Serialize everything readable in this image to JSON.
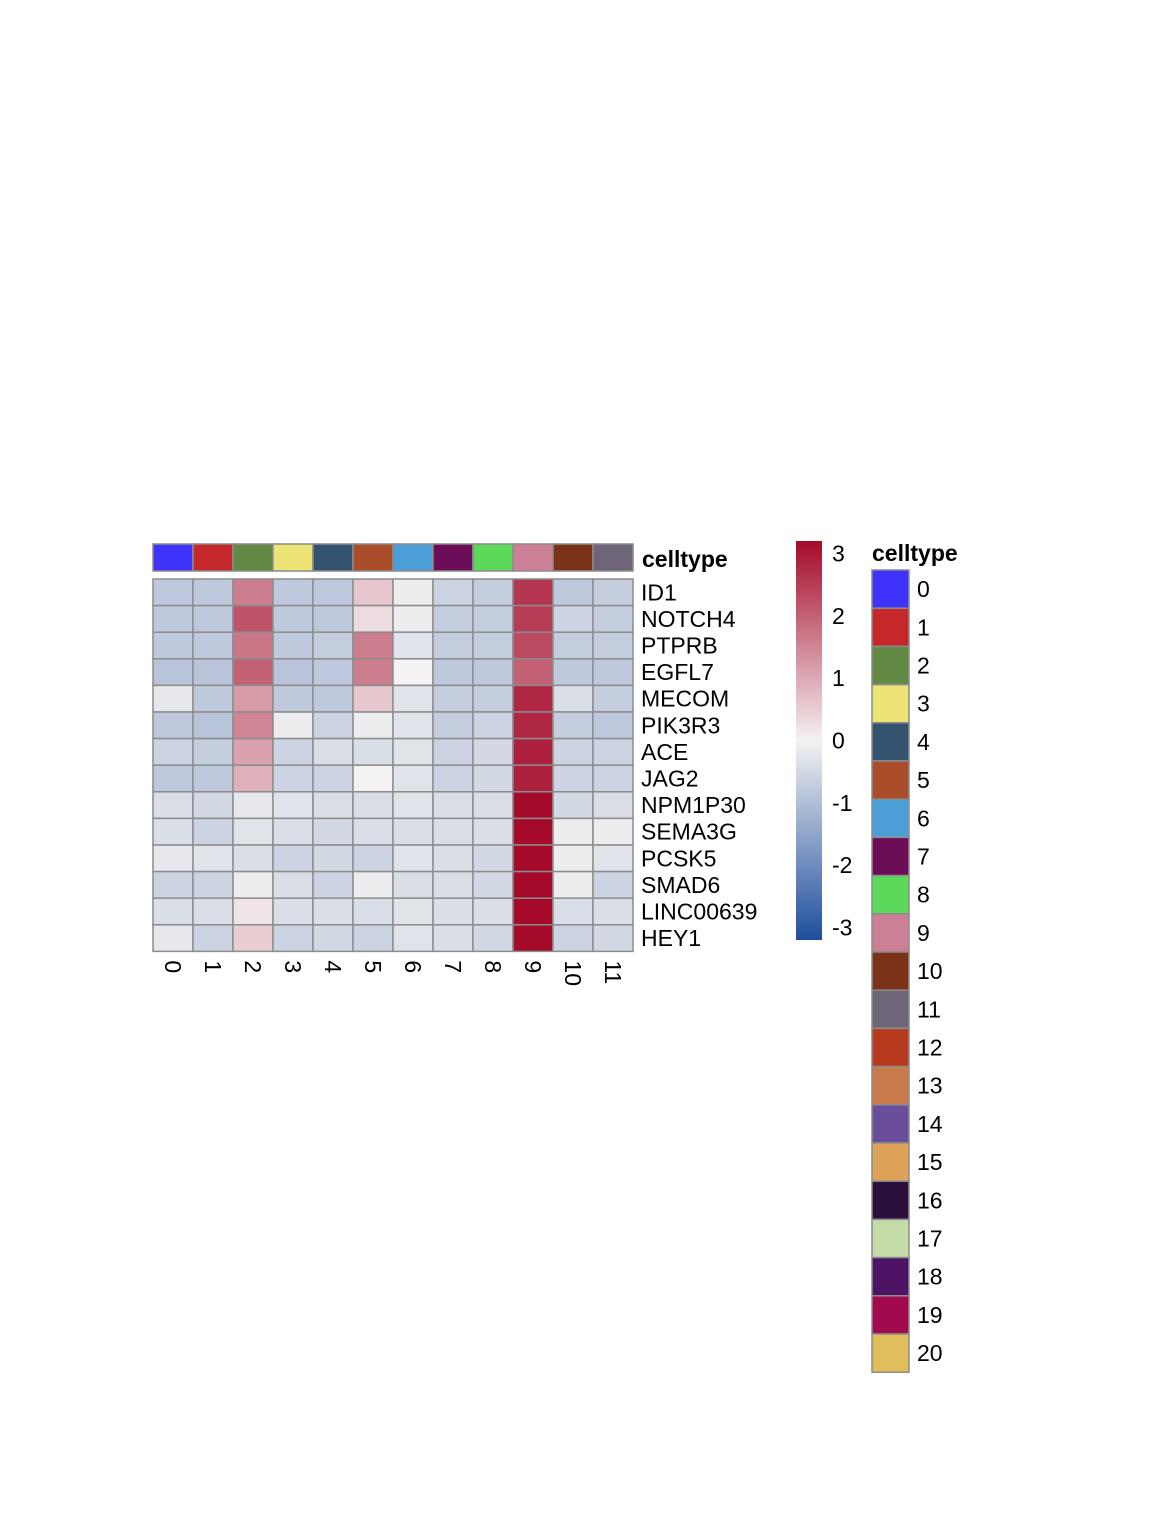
{
  "chart_data": {
    "type": "heatmap",
    "annotation_title": "celltype",
    "columns": [
      "0",
      "1",
      "2",
      "3",
      "4",
      "5",
      "6",
      "7",
      "8",
      "9",
      "10",
      "11"
    ],
    "rows": [
      "ID1",
      "NOTCH4",
      "PTPRB",
      "EGFL7",
      "MECOM",
      "PIK3R3",
      "ACE",
      "JAG2",
      "NPM1P30",
      "SEMA3G",
      "PCSK5",
      "SMAD6",
      "LINC00639",
      "HEY1"
    ],
    "values": [
      [
        -0.8,
        -0.8,
        1.6,
        -0.8,
        -0.8,
        0.6,
        -0.1,
        -0.6,
        -0.7,
        2.6,
        -0.8,
        -0.7
      ],
      [
        -0.8,
        -0.8,
        2.2,
        -0.8,
        -0.8,
        0.3,
        -0.1,
        -0.7,
        -0.7,
        2.5,
        -0.6,
        -0.7
      ],
      [
        -0.8,
        -0.8,
        1.7,
        -0.8,
        -0.7,
        1.6,
        -0.3,
        -0.7,
        -0.7,
        2.3,
        -0.7,
        -0.7
      ],
      [
        -0.9,
        -0.9,
        2.0,
        -0.9,
        -0.8,
        1.6,
        0.0,
        -0.8,
        -0.8,
        2.0,
        -0.8,
        -0.8
      ],
      [
        -0.2,
        -0.8,
        1.2,
        -0.8,
        -0.8,
        0.6,
        -0.3,
        -0.7,
        -0.7,
        2.8,
        -0.4,
        -0.7
      ],
      [
        -0.8,
        -0.9,
        1.5,
        -0.1,
        -0.6,
        -0.1,
        -0.3,
        -0.7,
        -0.6,
        2.8,
        -0.7,
        -0.8
      ],
      [
        -0.6,
        -0.7,
        1.1,
        -0.6,
        -0.4,
        -0.4,
        -0.3,
        -0.6,
        -0.5,
        2.9,
        -0.6,
        -0.6
      ],
      [
        -0.8,
        -0.8,
        0.9,
        -0.6,
        -0.6,
        0.0,
        -0.3,
        -0.6,
        -0.5,
        2.9,
        -0.6,
        -0.6
      ],
      [
        -0.4,
        -0.5,
        -0.2,
        -0.3,
        -0.4,
        -0.4,
        -0.3,
        -0.4,
        -0.4,
        3.2,
        -0.5,
        -0.4
      ],
      [
        -0.4,
        -0.6,
        -0.3,
        -0.4,
        -0.5,
        -0.4,
        -0.4,
        -0.4,
        -0.4,
        3.2,
        -0.1,
        -0.1
      ],
      [
        -0.2,
        -0.3,
        -0.4,
        -0.6,
        -0.5,
        -0.6,
        -0.3,
        -0.4,
        -0.5,
        3.2,
        -0.1,
        -0.3
      ],
      [
        -0.6,
        -0.6,
        -0.1,
        -0.4,
        -0.6,
        -0.1,
        -0.4,
        -0.4,
        -0.5,
        3.2,
        -0.1,
        -0.6
      ],
      [
        -0.4,
        -0.4,
        0.2,
        -0.4,
        -0.4,
        -0.4,
        -0.3,
        -0.4,
        -0.4,
        3.2,
        -0.4,
        -0.4
      ],
      [
        -0.2,
        -0.6,
        0.5,
        -0.6,
        -0.5,
        -0.6,
        -0.3,
        -0.4,
        -0.5,
        3.2,
        -0.6,
        -0.5
      ]
    ],
    "color_scale": {
      "min": -3.2,
      "max": 3.2,
      "ticks": [
        "3",
        "2",
        "1",
        "0",
        "-1",
        "-2",
        "-3"
      ],
      "tick_values": [
        3,
        2,
        1,
        0,
        -1,
        -2,
        -3
      ],
      "low_color": "#1d4f9c",
      "mid_color": "#f4f2f2",
      "high_color": "#a50a2a"
    },
    "celltype_legend": [
      {
        "label": "0",
        "color": "#3f33fb"
      },
      {
        "label": "1",
        "color": "#c5282a"
      },
      {
        "label": "2",
        "color": "#628a45"
      },
      {
        "label": "3",
        "color": "#ece475"
      },
      {
        "label": "4",
        "color": "#33536e"
      },
      {
        "label": "5",
        "color": "#a94d2b"
      },
      {
        "label": "6",
        "color": "#4c9fd6"
      },
      {
        "label": "7",
        "color": "#6c0d57"
      },
      {
        "label": "8",
        "color": "#5cd95a"
      },
      {
        "label": "9",
        "color": "#cb8095"
      },
      {
        "label": "10",
        "color": "#7a3218"
      },
      {
        "label": "11",
        "color": "#6f6579"
      },
      {
        "label": "12",
        "color": "#b83a1e"
      },
      {
        "label": "13",
        "color": "#c87a4b"
      },
      {
        "label": "14",
        "color": "#6a4e9c"
      },
      {
        "label": "15",
        "color": "#dea158"
      },
      {
        "label": "16",
        "color": "#2b0f3c"
      },
      {
        "label": "17",
        "color": "#c5dca8"
      },
      {
        "label": "18",
        "color": "#4d1465"
      },
      {
        "label": "19",
        "color": "#a10a4f"
      },
      {
        "label": "20",
        "color": "#e1be5c"
      }
    ]
  }
}
